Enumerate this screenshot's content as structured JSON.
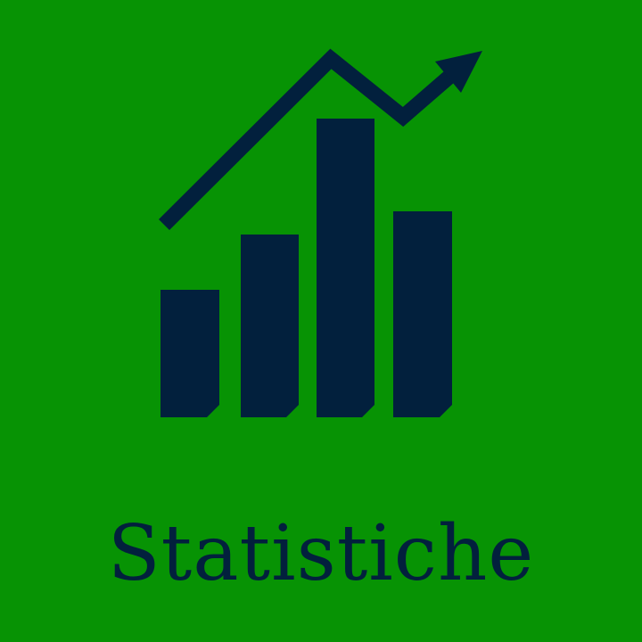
{
  "tile": {
    "label": "Statistiche",
    "icon": "bar-chart-trend-up-icon"
  },
  "colors": {
    "background": "#079304",
    "foreground": "#02203d"
  }
}
